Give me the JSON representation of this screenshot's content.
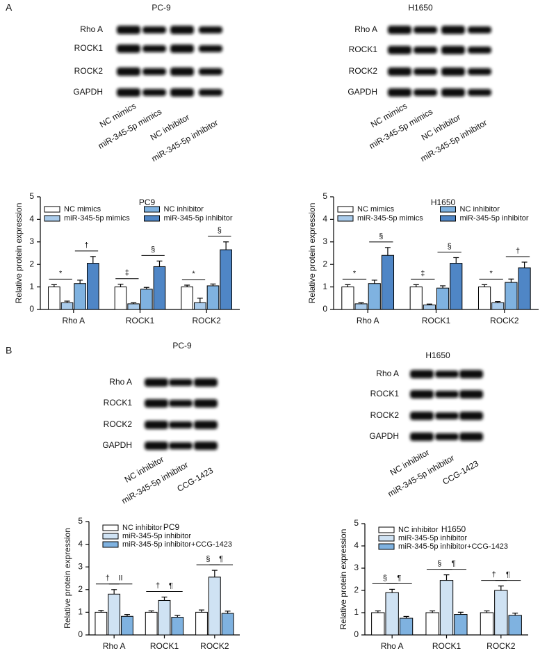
{
  "panels": [
    {
      "letter": "A"
    },
    {
      "letter": "B"
    }
  ],
  "blots": [
    {
      "title": "PC-9",
      "proteins": [
        "Rho A",
        "ROCK1",
        "ROCK2",
        "GAPDH"
      ],
      "lanes": [
        "NC mimics",
        "miR-345-5p mimics",
        "NC inhibitor",
        "miR-345-5p inhibitor"
      ]
    },
    {
      "title": "H1650",
      "proteins": [
        "Rho A",
        "ROCK1",
        "ROCK2",
        "GAPDH"
      ],
      "lanes": [
        "NC mimics",
        "miR-345-5p mimics",
        "NC inhibitor",
        "miR-345-5p inhibitor"
      ]
    },
    {
      "title": "PC-9",
      "proteins": [
        "Rho A",
        "ROCK1",
        "ROCK2",
        "GAPDH"
      ],
      "lanes": [
        "NC inhibitor",
        "miR-345-5p inhibitor",
        "CCG-1423"
      ]
    },
    {
      "title": "H1650",
      "proteins": [
        "Rho A",
        "ROCK1",
        "ROCK2",
        "GAPDH"
      ],
      "lanes": [
        "NC inhibitor",
        "miR-345-5p inhibitor",
        "CCG-1423"
      ]
    }
  ],
  "chart_data": [
    {
      "type": "bar",
      "title": "PC9",
      "y_label": "Relative protein expression",
      "categories": [
        "Rho A",
        "ROCK1",
        "ROCK2"
      ],
      "ylim": [
        0,
        5
      ],
      "yticks": [
        0,
        1,
        2,
        3,
        4,
        5
      ],
      "series": [
        {
          "name": "NC mimics",
          "color": "#ffffff",
          "values": [
            1,
            1,
            1
          ],
          "errors": [
            0.1,
            0.12,
            0.08
          ]
        },
        {
          "name": "miR-345-5p mimics",
          "color": "#a9cbeb",
          "values": [
            0.3,
            0.25,
            0.3
          ],
          "errors": [
            0.07,
            0.05,
            0.2
          ],
          "annotations": [
            "*",
            "‡",
            "*"
          ]
        },
        {
          "name": "NC inhibitor",
          "color": "#7fb2e0",
          "values": [
            1.15,
            0.9,
            1.05
          ],
          "errors": [
            0.15,
            0.08,
            0.08
          ]
        },
        {
          "name": "miR-345-5p inhibitor",
          "color": "#4f86c6",
          "values": [
            2.05,
            1.9,
            2.65
          ],
          "errors": [
            0.3,
            0.25,
            0.35
          ],
          "annotations": [
            "†",
            "§",
            "§"
          ]
        }
      ]
    },
    {
      "type": "bar",
      "title": "H1650",
      "y_label": "Relative protein expression",
      "categories": [
        "Rho A",
        "ROCK1",
        "ROCK2"
      ],
      "ylim": [
        0,
        5
      ],
      "yticks": [
        0,
        1,
        2,
        3,
        4,
        5
      ],
      "series": [
        {
          "name": "NC mimics",
          "color": "#ffffff",
          "values": [
            1,
            1,
            1
          ],
          "errors": [
            0.1,
            0.1,
            0.1
          ]
        },
        {
          "name": "miR-345-5p mimics",
          "color": "#a9cbeb",
          "values": [
            0.25,
            0.2,
            0.3
          ],
          "errors": [
            0.05,
            0.04,
            0.05
          ],
          "annotations": [
            "*",
            "‡",
            "*"
          ]
        },
        {
          "name": "NC inhibitor",
          "color": "#7fb2e0",
          "values": [
            1.15,
            0.95,
            1.2
          ],
          "errors": [
            0.15,
            0.1,
            0.15
          ]
        },
        {
          "name": "miR-345-5p inhibitor",
          "color": "#4f86c6",
          "values": [
            2.4,
            2.05,
            1.85
          ],
          "errors": [
            0.35,
            0.25,
            0.25
          ],
          "annotations": [
            "§",
            "§",
            "†"
          ]
        }
      ]
    },
    {
      "type": "bar",
      "title": "PC9",
      "y_label": "Relative protein expression",
      "categories": [
        "Rho A",
        "ROCK1",
        "ROCK2"
      ],
      "ylim": [
        0,
        5
      ],
      "yticks": [
        0,
        1,
        2,
        3,
        4,
        5
      ],
      "series": [
        {
          "name": "NC inhibitor",
          "color": "#ffffff",
          "values": [
            1,
            1,
            1
          ],
          "errors": [
            0.08,
            0.06,
            0.1
          ]
        },
        {
          "name": "miR-345-5p inhibitor",
          "color": "#cfe2f3",
          "values": [
            1.8,
            1.52,
            2.55
          ],
          "errors": [
            0.2,
            0.15,
            0.3
          ],
          "annotations": [
            "†",
            "†",
            "§"
          ]
        },
        {
          "name": "miR-345-5p inhibitor+CCG-1423",
          "color": "#7fb2e0",
          "values": [
            0.82,
            0.78,
            0.95
          ],
          "errors": [
            0.08,
            0.08,
            0.1
          ],
          "annotations": [
            "II",
            "¶",
            "¶"
          ]
        }
      ]
    },
    {
      "type": "bar",
      "title": "H1650",
      "y_label": "Relative protein expression",
      "categories": [
        "Rho A",
        "ROCK1",
        "ROCK2"
      ],
      "ylim": [
        0,
        5
      ],
      "yticks": [
        0,
        1,
        2,
        3,
        4,
        5
      ],
      "series": [
        {
          "name": "NC inhibitor",
          "color": "#ffffff",
          "values": [
            1,
            1,
            1
          ],
          "errors": [
            0.08,
            0.08,
            0.08
          ]
        },
        {
          "name": "miR-345-5p inhibitor",
          "color": "#cfe2f3",
          "values": [
            1.9,
            2.45,
            2.0
          ],
          "errors": [
            0.15,
            0.25,
            0.2
          ],
          "annotations": [
            "§",
            "§",
            "†"
          ]
        },
        {
          "name": "miR-345-5p inhibitor+CCG-1423",
          "color": "#7fb2e0",
          "values": [
            0.75,
            0.92,
            0.88
          ],
          "errors": [
            0.08,
            0.1,
            0.1
          ],
          "annotations": [
            "¶",
            "¶",
            "¶"
          ]
        }
      ]
    }
  ]
}
